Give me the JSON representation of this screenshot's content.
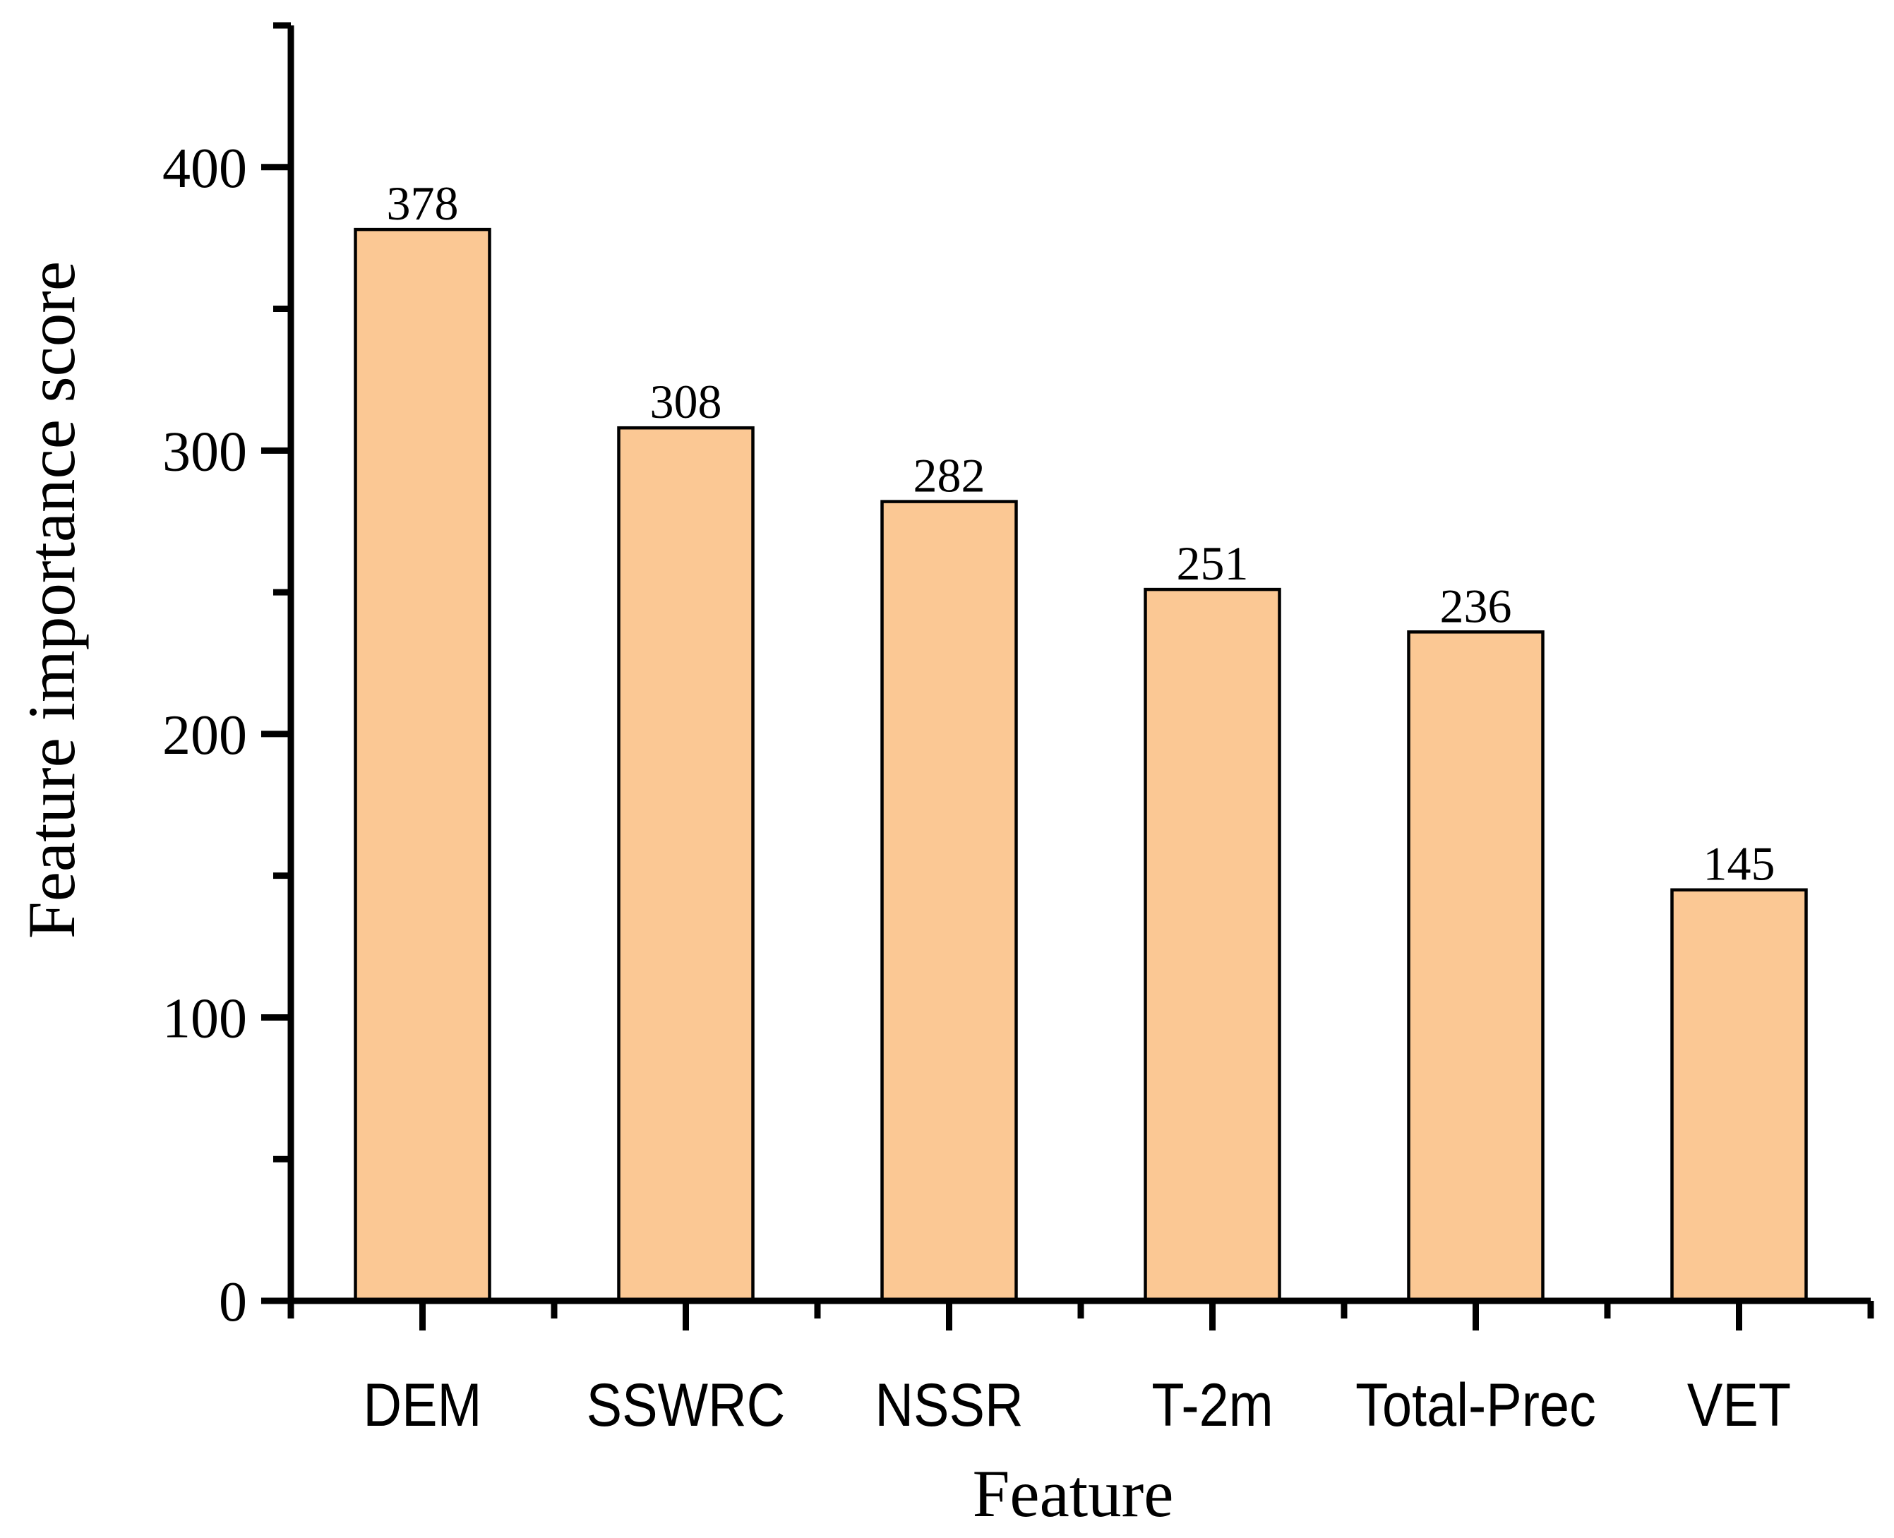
{
  "figure": {
    "background_color": "#ffffff",
    "axis_color": "#000000",
    "text_color": "#000000"
  },
  "chart_data": {
    "type": "bar",
    "title": "",
    "categories": [
      "DEM",
      "SSWRC",
      "NSSR",
      "T-2m",
      "Total-Prec",
      "VET"
    ],
    "values": [
      378,
      308,
      282,
      251,
      236,
      145
    ],
    "value_labels": [
      "378",
      "308",
      "282",
      "251",
      "236",
      "145"
    ],
    "show_value_labels": true,
    "xlabel": "Feature",
    "ylabel": "Feature importance score",
    "ylim": [
      0,
      450
    ],
    "y_major_ticks": [
      0,
      100,
      200,
      300,
      400
    ],
    "y_minor_ticks": [
      50,
      150,
      250,
      350,
      450
    ],
    "x_minor_ticks_at_category_boundaries": true,
    "grid": false,
    "legend": "none",
    "colors": {
      "bar_fill": "#FBC894",
      "bar_edge": "#000000",
      "axis": "#000000",
      "text": "#000000"
    }
  }
}
